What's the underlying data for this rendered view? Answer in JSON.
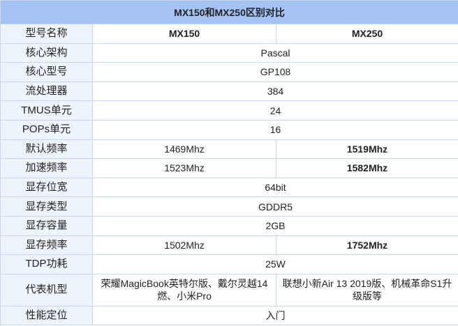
{
  "title": "MX150和MX250区别对比",
  "header": {
    "label": "型号名称",
    "col1": "MX150",
    "col2": "MX250"
  },
  "rows": [
    {
      "label": "核心架构",
      "shared": "Pascal"
    },
    {
      "label": "核心型号",
      "shared": "GP108"
    },
    {
      "label": "流处理器",
      "shared": "384"
    },
    {
      "label": "TMUS单元",
      "shared": "24"
    },
    {
      "label": "POPs单元",
      "shared": "16"
    },
    {
      "label": "默认频率",
      "mx150": "1469Mhz",
      "mx250": "1519Mhz"
    },
    {
      "label": "加速频率",
      "mx150": "1523Mhz",
      "mx250": "1582Mhz"
    },
    {
      "label": "显存位宽",
      "shared": "64bit"
    },
    {
      "label": "显存类型",
      "shared": "GDDR5"
    },
    {
      "label": "显存容量",
      "shared": "2GB"
    },
    {
      "label": "显存频率",
      "mx150": "1502Mhz",
      "mx250": "1752Mhz"
    },
    {
      "label": "TDP功耗",
      "shared": "25W"
    },
    {
      "label": "代表机型",
      "mx150": "荣耀MagicBook英特尔版、戴尔灵越14燃、小米Pro",
      "mx250": "联想小新Air 13 2019版、机械革命S1升级版等"
    },
    {
      "label": "性能定位",
      "shared": "入门"
    }
  ],
  "colors": {
    "title_bg": "#a4c2f4",
    "label_bg": "#eef4fb",
    "border": "#c9d7ea"
  }
}
